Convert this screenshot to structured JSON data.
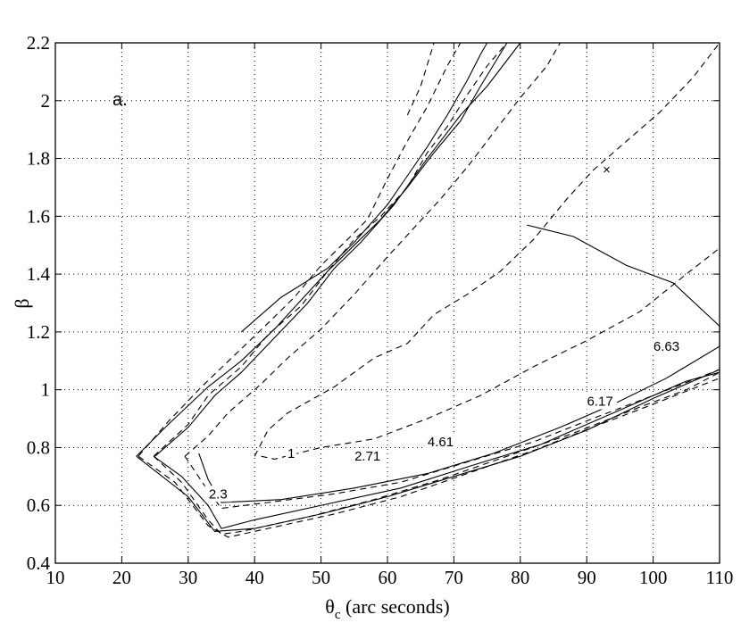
{
  "chart_data": {
    "type": "line",
    "panel_label": "a.",
    "xlabel": "θ",
    "xlabel_sub": "c",
    "xlabel_rest": " (arc seconds)",
    "ylabel": "β",
    "xlim": [
      10,
      110
    ],
    "ylim": [
      0.4,
      2.2
    ],
    "grid": true,
    "xticks": [
      "10",
      "20",
      "30",
      "40",
      "50",
      "60",
      "70",
      "80",
      "90",
      "100",
      "110"
    ],
    "yticks": [
      "0.4",
      "0.6",
      "0.8",
      "1",
      "1.2",
      "1.4",
      "1.6",
      "1.8",
      "2",
      "2.2"
    ],
    "best_fit_marker": {
      "x": 93,
      "y": 1.76,
      "symbol": "×"
    },
    "series": [
      {
        "style": "solid",
        "points": [
          [
            31.6,
            0.78
          ],
          [
            33,
            0.69
          ],
          [
            35,
            0.61
          ],
          [
            44,
            0.62
          ],
          [
            55,
            0.66
          ],
          [
            66,
            0.71
          ],
          [
            76,
            0.78
          ],
          [
            86,
            0.87
          ],
          [
            94,
            0.95
          ],
          [
            102,
            1.04
          ],
          [
            110,
            1.15
          ],
          [
            110,
            1.22
          ],
          [
            103,
            1.37
          ],
          [
            96,
            1.43
          ],
          [
            88,
            1.53
          ],
          [
            81,
            1.57
          ]
        ]
      },
      {
        "style": "solid",
        "points": [
          [
            38,
            1.2
          ],
          [
            44,
            1.32
          ],
          [
            51,
            1.42
          ],
          [
            55,
            1.51
          ],
          [
            60,
            1.64
          ],
          [
            63,
            1.74
          ],
          [
            66,
            1.84
          ],
          [
            69,
            1.95
          ],
          [
            72,
            2.07
          ],
          [
            74,
            2.16
          ],
          [
            75,
            2.2
          ]
        ]
      },
      {
        "style": "solid",
        "points": [
          [
            24.8,
            0.77
          ],
          [
            29,
            0.7
          ],
          [
            33,
            0.6
          ],
          [
            35,
            0.52
          ],
          [
            40,
            0.55
          ],
          [
            52,
            0.61
          ],
          [
            62,
            0.66
          ],
          [
            73,
            0.74
          ],
          [
            83,
            0.81
          ],
          [
            94,
            0.92
          ],
          [
            105,
            1.03
          ],
          [
            110,
            1.06
          ]
        ]
      },
      {
        "style": "solid",
        "points": [
          [
            25,
            0.77
          ],
          [
            30,
            0.87
          ],
          [
            34,
            0.98
          ],
          [
            38,
            1.06
          ],
          [
            43,
            1.18
          ],
          [
            48,
            1.3
          ],
          [
            52,
            1.42
          ],
          [
            56,
            1.51
          ],
          [
            61,
            1.64
          ],
          [
            66,
            1.8
          ],
          [
            71,
            1.95
          ],
          [
            75,
            2.05
          ],
          [
            80,
            2.2
          ]
        ]
      },
      {
        "style": "solid",
        "points": [
          [
            22.2,
            0.77
          ],
          [
            30,
            0.63
          ],
          [
            34,
            0.51
          ],
          [
            40,
            0.52
          ],
          [
            50,
            0.57
          ],
          [
            60,
            0.63
          ],
          [
            70,
            0.7
          ],
          [
            80,
            0.77
          ],
          [
            90,
            0.86
          ],
          [
            100,
            0.97
          ],
          [
            105,
            1.02
          ],
          [
            110,
            1.07
          ]
        ]
      },
      {
        "style": "solid",
        "points": [
          [
            22.2,
            0.77
          ],
          [
            27,
            0.88
          ],
          [
            33,
            1.01
          ],
          [
            38,
            1.1
          ],
          [
            43,
            1.21
          ],
          [
            47,
            1.31
          ],
          [
            51,
            1.41
          ],
          [
            55,
            1.5
          ],
          [
            59,
            1.59
          ],
          [
            63,
            1.7
          ],
          [
            67,
            1.82
          ],
          [
            71,
            1.93
          ],
          [
            74,
            2.05
          ],
          [
            78,
            2.2
          ]
        ]
      },
      {
        "style": "dashed",
        "points": [
          [
            40,
            0.77
          ],
          [
            42,
            0.86
          ],
          [
            45,
            0.92
          ],
          [
            52,
            1.01
          ],
          [
            58,
            1.11
          ],
          [
            63,
            1.16
          ],
          [
            67,
            1.26
          ],
          [
            72,
            1.33
          ],
          [
            77,
            1.41
          ],
          [
            82,
            1.52
          ],
          [
            87,
            1.66
          ],
          [
            91,
            1.76
          ],
          [
            96,
            1.86
          ],
          [
            101,
            1.96
          ],
          [
            106,
            2.08
          ],
          [
            110,
            2.2
          ]
        ]
      },
      {
        "style": "dashed",
        "points": [
          [
            41,
            0.77
          ],
          [
            43,
            0.76
          ],
          [
            50,
            0.8
          ],
          [
            58,
            0.83
          ],
          [
            66,
            0.9
          ],
          [
            74,
            0.98
          ],
          [
            82,
            1.08
          ],
          [
            90,
            1.17
          ],
          [
            98,
            1.27
          ],
          [
            105,
            1.4
          ],
          [
            110,
            1.49
          ]
        ]
      },
      {
        "style": "dashed",
        "points": [
          [
            29.5,
            0.77
          ],
          [
            33,
            0.65
          ],
          [
            35,
            0.59
          ],
          [
            42,
            0.61
          ],
          [
            52,
            0.64
          ],
          [
            62,
            0.68
          ],
          [
            72,
            0.75
          ],
          [
            82,
            0.82
          ],
          [
            92,
            0.91
          ],
          [
            100,
            0.98
          ],
          [
            110,
            1.07
          ]
        ]
      },
      {
        "style": "dashed",
        "points": [
          [
            29.5,
            0.77
          ],
          [
            33,
            0.84
          ],
          [
            36,
            0.92
          ],
          [
            41,
            1.02
          ],
          [
            45,
            1.11
          ],
          [
            50,
            1.21
          ],
          [
            55,
            1.33
          ],
          [
            60,
            1.46
          ],
          [
            64,
            1.56
          ],
          [
            68,
            1.66
          ],
          [
            72,
            1.77
          ],
          [
            76,
            1.89
          ],
          [
            80,
            2.01
          ],
          [
            84,
            2.12
          ],
          [
            86,
            2.2
          ]
        ]
      },
      {
        "style": "dashed",
        "points": [
          [
            24.8,
            0.77
          ],
          [
            29,
            0.68
          ],
          [
            33,
            0.55
          ],
          [
            35,
            0.5
          ],
          [
            38,
            0.51
          ],
          [
            48,
            0.56
          ],
          [
            58,
            0.62
          ],
          [
            68,
            0.69
          ],
          [
            78,
            0.77
          ],
          [
            88,
            0.85
          ],
          [
            98,
            0.94
          ],
          [
            105,
            1.0
          ],
          [
            110,
            1.06
          ]
        ]
      },
      {
        "style": "dashed",
        "points": [
          [
            24.8,
            0.77
          ],
          [
            30,
            0.88
          ],
          [
            33,
            0.98
          ],
          [
            38,
            1.08
          ],
          [
            42,
            1.19
          ],
          [
            47,
            1.29
          ],
          [
            51,
            1.41
          ],
          [
            55,
            1.52
          ],
          [
            59,
            1.6
          ],
          [
            63,
            1.7
          ],
          [
            66,
            1.82
          ],
          [
            69,
            1.91
          ],
          [
            72,
            2.02
          ],
          [
            75,
            2.12
          ],
          [
            78,
            2.2
          ]
        ]
      },
      {
        "style": "dashed",
        "points": [
          [
            22.5,
            0.77
          ],
          [
            28,
            0.68
          ],
          [
            33,
            0.53
          ],
          [
            36,
            0.49
          ],
          [
            42,
            0.52
          ],
          [
            52,
            0.57
          ],
          [
            62,
            0.63
          ],
          [
            72,
            0.71
          ],
          [
            82,
            0.79
          ],
          [
            92,
            0.88
          ],
          [
            100,
            0.95
          ],
          [
            110,
            1.04
          ]
        ]
      },
      {
        "style": "dashed",
        "points": [
          [
            22.5,
            0.77
          ],
          [
            27,
            0.89
          ],
          [
            32,
            1.01
          ],
          [
            37,
            1.12
          ],
          [
            42,
            1.23
          ],
          [
            46,
            1.32
          ],
          [
            50,
            1.43
          ],
          [
            54,
            1.52
          ],
          [
            57,
            1.59
          ],
          [
            60,
            1.73
          ],
          [
            63,
            1.86
          ],
          [
            66,
            1.98
          ],
          [
            69,
            2.12
          ],
          [
            71,
            2.2
          ]
        ]
      },
      {
        "style": "dashed",
        "points": [
          [
            63,
            1.95
          ],
          [
            65,
            2.05
          ],
          [
            67,
            2.2
          ]
        ]
      }
    ],
    "contour_labels": [
      {
        "text": "1",
        "x": 45.5,
        "y": 0.78
      },
      {
        "text": "2.3",
        "x": 34.5,
        "y": 0.64
      },
      {
        "text": "2.71",
        "x": 57,
        "y": 0.77
      },
      {
        "text": "4.61",
        "x": 68,
        "y": 0.82
      },
      {
        "text": "6.17",
        "x": 92,
        "y": 0.96
      },
      {
        "text": "6.63",
        "x": 102,
        "y": 1.15
      }
    ]
  }
}
